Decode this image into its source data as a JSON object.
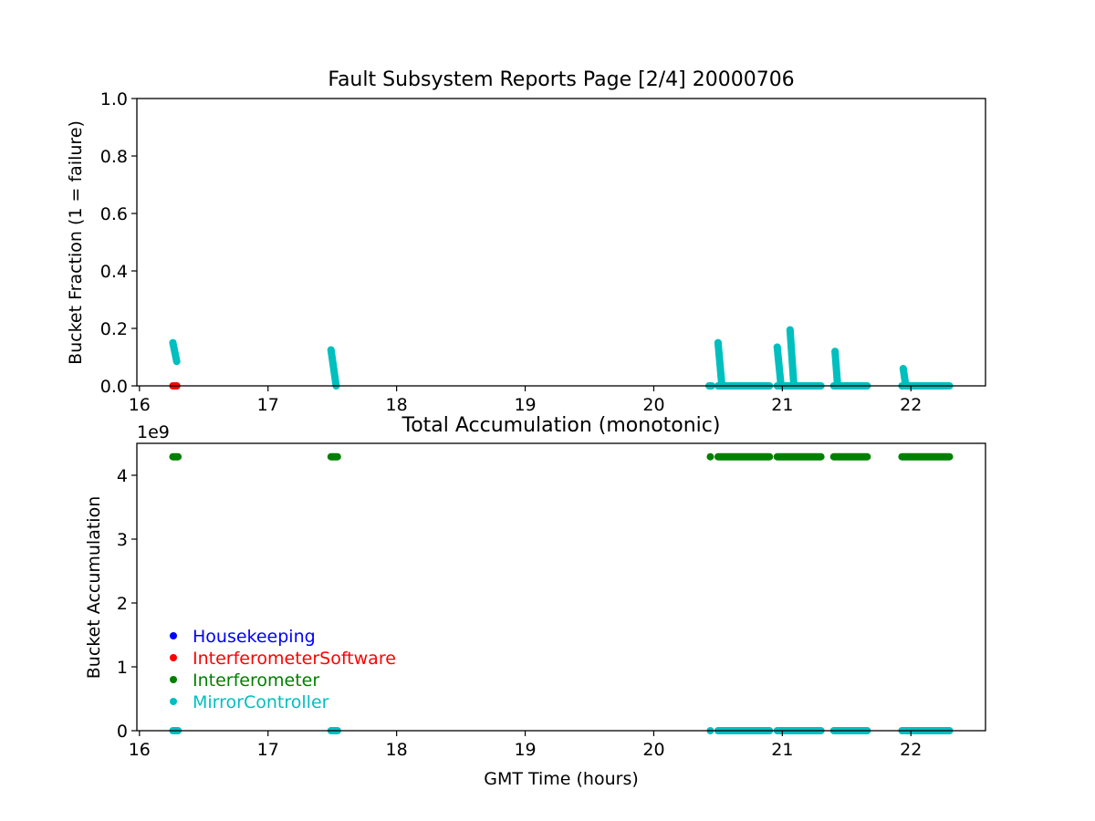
{
  "chart_data": [
    {
      "type": "scatter",
      "title": "Fault Subsystem Reports Page [2/4] 20000706",
      "xlabel": "",
      "ylabel": "Bucket Fraction (1 = failure)",
      "xlim": [
        15.98,
        22.58
      ],
      "ylim": [
        0,
        1.0
      ],
      "x_ticks": [
        16,
        17,
        18,
        19,
        20,
        21,
        22
      ],
      "y_ticks": [
        0.0,
        0.2,
        0.4,
        0.6,
        0.8,
        1.0
      ],
      "x_tick_labels": [
        "16",
        "17",
        "18",
        "19",
        "20",
        "21",
        "22"
      ],
      "y_tick_labels": [
        "0.0",
        "0.2",
        "0.4",
        "0.6",
        "0.8",
        "1.0"
      ],
      "grid": false,
      "series": [
        {
          "name": "InterferometerSoftware",
          "color": "#ff0000",
          "points": [
            [
              16.26,
              0.0
            ],
            [
              16.27,
              0.0
            ],
            [
              16.28,
              0.0
            ],
            [
              16.29,
              0.0
            ]
          ]
        },
        {
          "name": "MirrorController",
          "color": "#00bfbf",
          "spikes": [
            {
              "x_start": 16.26,
              "x_end": 16.29,
              "y_start": 0.15,
              "y_end": 0.085
            },
            {
              "x_start": 17.49,
              "x_end": 17.53,
              "y_start": 0.125,
              "y_end": 0.0
            },
            {
              "x_start": 20.5,
              "x_end": 20.53,
              "y_start": 0.15,
              "y_end": 0.0
            },
            {
              "x_start": 20.96,
              "x_end": 20.99,
              "y_start": 0.135,
              "y_end": 0.0
            },
            {
              "x_start": 21.06,
              "x_end": 21.09,
              "y_start": 0.195,
              "y_end": 0.0
            },
            {
              "x_start": 21.41,
              "x_end": 21.43,
              "y_start": 0.12,
              "y_end": 0.0
            },
            {
              "x_start": 21.94,
              "x_end": 21.96,
              "y_start": 0.06,
              "y_end": 0.0
            }
          ],
          "baseline_segments": [
            [
              20.43,
              20.45
            ],
            [
              20.5,
              20.9
            ],
            [
              20.96,
              21.3
            ],
            [
              21.4,
              21.66
            ],
            [
              21.93,
              22.3
            ]
          ]
        }
      ]
    },
    {
      "type": "scatter",
      "title": "Total Accumulation (monotonic)",
      "xlabel": "GMT Time (hours)",
      "ylabel": "Bucket Accumulation",
      "axis_offset_label": "1e9",
      "xlim": [
        15.98,
        22.58
      ],
      "ylim": [
        0,
        4.5
      ],
      "x_ticks": [
        16,
        17,
        18,
        19,
        20,
        21,
        22
      ],
      "y_ticks": [
        0,
        1,
        2,
        3,
        4
      ],
      "x_tick_labels": [
        "16",
        "17",
        "18",
        "19",
        "20",
        "21",
        "22"
      ],
      "y_tick_labels": [
        "0",
        "1",
        "2",
        "3",
        "4"
      ],
      "grid": false,
      "legend_position": "lower-left",
      "legend": [
        {
          "name": "Housekeeping",
          "color": "#0000ff"
        },
        {
          "name": "InterferometerSoftware",
          "color": "#ff0000"
        },
        {
          "name": "Interferometer",
          "color": "#008000"
        },
        {
          "name": "MirrorController",
          "color": "#00bfbf"
        }
      ],
      "series": [
        {
          "name": "Interferometer",
          "color": "#008000",
          "value": 4.29,
          "segments": [
            [
              16.26,
              16.3
            ],
            [
              17.49,
              17.54
            ],
            [
              20.44,
              20.44
            ],
            [
              20.5,
              20.9
            ],
            [
              20.96,
              21.3
            ],
            [
              21.4,
              21.66
            ],
            [
              21.93,
              22.3
            ]
          ]
        },
        {
          "name": "MirrorController",
          "color": "#00bfbf",
          "value": 0.0,
          "segments": [
            [
              16.26,
              16.3
            ],
            [
              17.49,
              17.54
            ],
            [
              20.44,
              20.44
            ],
            [
              20.5,
              20.9
            ],
            [
              20.96,
              21.3
            ],
            [
              21.4,
              21.66
            ],
            [
              21.93,
              22.3
            ]
          ]
        }
      ]
    }
  ]
}
